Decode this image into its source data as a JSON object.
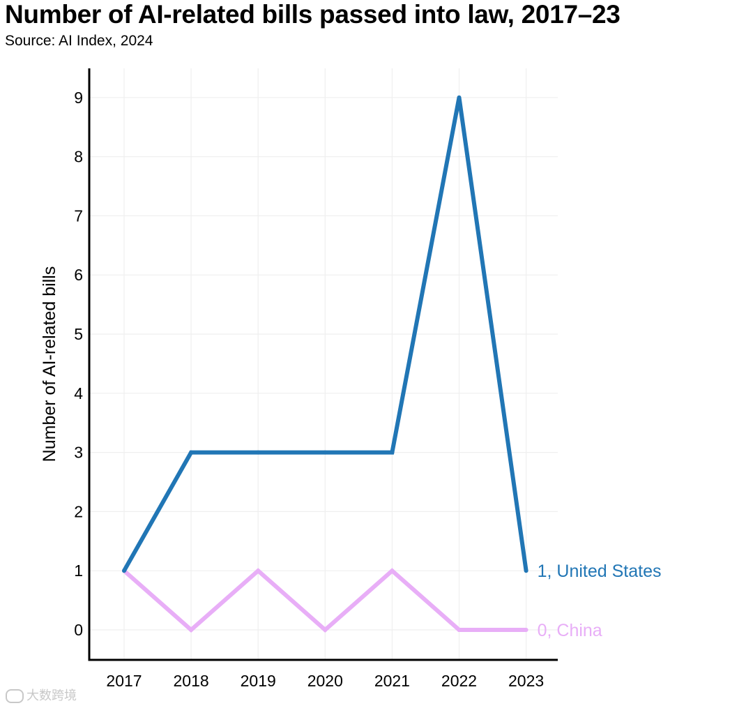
{
  "title": "Number of AI-related bills passed into law, 2017–23",
  "subtitle": "Source: AI Index, 2024",
  "watermark": "大数跨境",
  "chart_data": {
    "type": "line",
    "title": "Number of AI-related bills passed into law, 2017–23",
    "subtitle": "Source: AI Index, 2024",
    "xlabel": "",
    "ylabel": "Number of AI-related bills",
    "x": [
      2017,
      2018,
      2019,
      2020,
      2021,
      2022,
      2023
    ],
    "x_tick_labels": [
      "2017",
      "2018",
      "2019",
      "2020",
      "2021",
      "2022",
      "2023"
    ],
    "y_ticks": [
      0,
      1,
      2,
      3,
      4,
      5,
      6,
      7,
      8,
      9
    ],
    "y_tick_labels": [
      "0",
      "1",
      "2",
      "3",
      "4",
      "5",
      "6",
      "7",
      "8",
      "9"
    ],
    "ylim": [
      -0.5,
      9.5
    ],
    "grid": true,
    "legend": "end-of-line labels",
    "series": [
      {
        "name": "United States",
        "values": [
          1,
          3,
          3,
          3,
          3,
          9,
          1
        ],
        "color": "#2176b5",
        "end_label": "1, United States"
      },
      {
        "name": "China",
        "values": [
          1,
          0,
          1,
          0,
          1,
          0,
          0
        ],
        "color": "#e8aef7",
        "end_label": "0, China"
      }
    ]
  }
}
